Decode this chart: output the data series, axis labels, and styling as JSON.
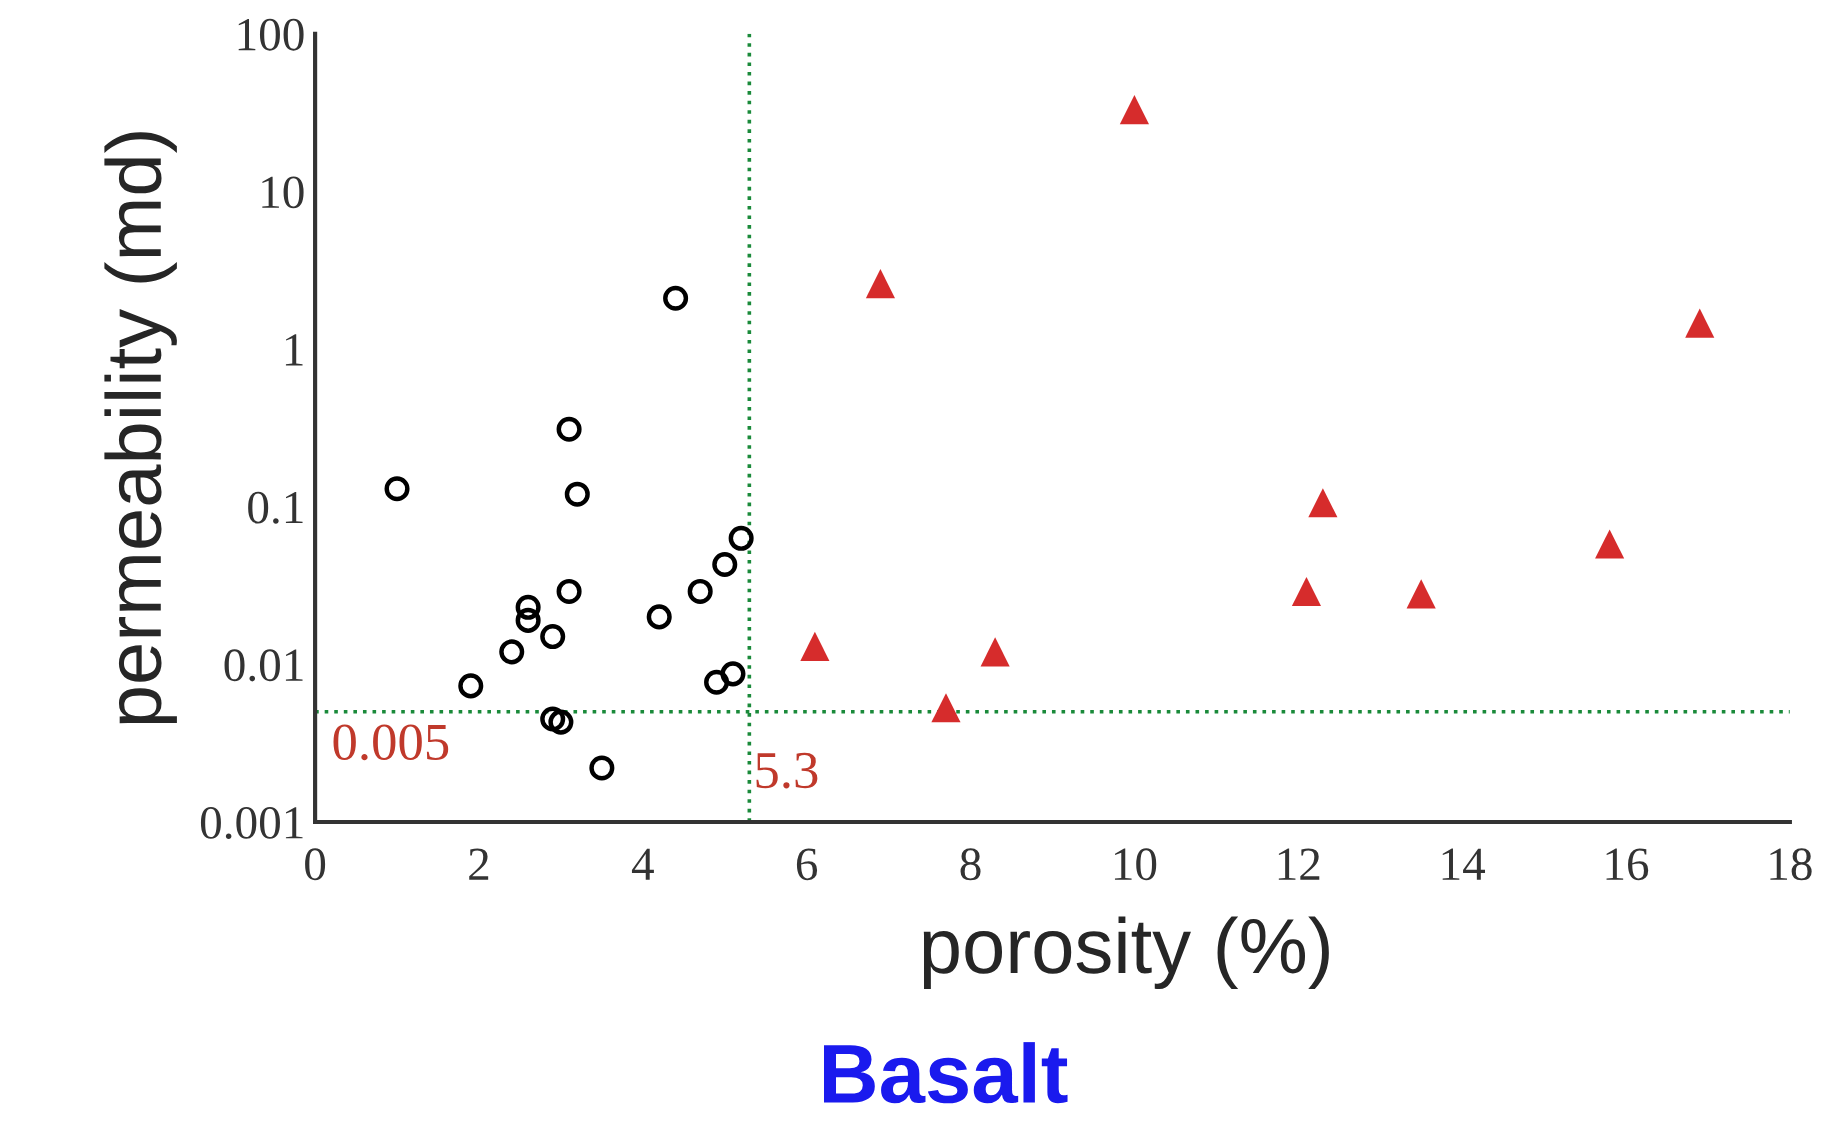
{
  "chart_data": {
    "type": "scatter",
    "title": "Basalt",
    "xlabel": "porosity (%)",
    "ylabel": "permeability (md)",
    "log": "y",
    "xlim": [
      0,
      18
    ],
    "xticks": [
      0,
      2,
      4,
      6,
      8,
      10,
      12,
      14,
      16,
      18
    ],
    "ylim": [
      0.001,
      100
    ],
    "yticks": [
      0.001,
      0.01,
      0.1,
      1,
      10,
      100
    ],
    "grid": false,
    "series": [
      {
        "color": "#000000",
        "marker": "circle",
        "x": [
          1.0,
          4.4,
          3.1,
          3.2,
          5.2,
          5.0,
          4.7,
          4.2,
          3.1,
          2.6,
          2.6,
          2.9,
          2.4,
          1.9,
          4.9,
          5.1,
          2.9,
          3.0,
          3.5
        ],
        "values": [
          0.13,
          2.1,
          0.31,
          0.12,
          0.063,
          0.043,
          0.029,
          0.02,
          0.029,
          0.023,
          0.019,
          0.015,
          0.012,
          0.0073,
          0.0077,
          0.0087,
          0.0045,
          0.0043,
          0.0022
        ]
      },
      {
        "color": "#d62c2c",
        "marker": "triangle",
        "x": [
          10.0,
          6.9,
          16.9,
          12.3,
          15.8,
          12.1,
          13.5,
          6.1,
          8.3,
          7.7
        ],
        "values": [
          33,
          2.6,
          1.46,
          0.106,
          0.058,
          0.029,
          0.028,
          0.013,
          0.012,
          0.0053
        ]
      }
    ],
    "ref_lines": [
      {
        "axis": "y",
        "value": 0.005,
        "label": "0.005",
        "color": "#1a8a3a",
        "line_style": "dotted"
      },
      {
        "axis": "x",
        "value": 5.3,
        "label": "5.3",
        "color": "#1a8a3a",
        "line_style": "dotted"
      }
    ]
  }
}
